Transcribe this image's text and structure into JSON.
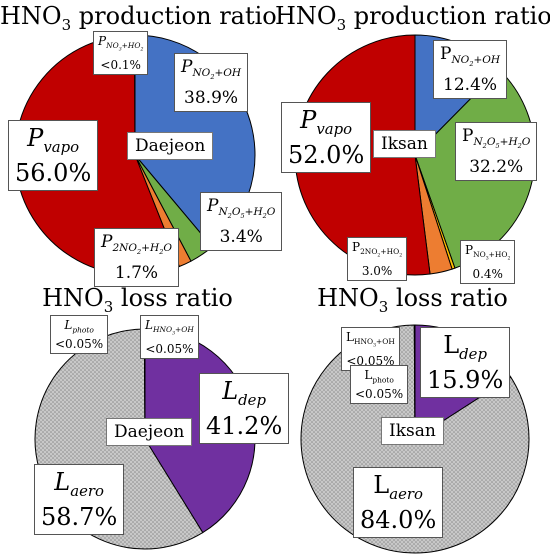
{
  "chart_data": [
    {
      "type": "pie",
      "title": "HNO3 production ratio",
      "site": "Daejeon",
      "slices": [
        {
          "name": "P_{NO2+OH}",
          "value": 38.9,
          "display": "38.9%",
          "color": "#4472C4"
        },
        {
          "name": "P_{N2O5+H2O}",
          "value": 3.4,
          "display": "3.4%",
          "color": "#70AD47"
        },
        {
          "name": "P_{2NO2+H2O}",
          "value": 1.7,
          "display": "1.7%",
          "color": "#ED7D31"
        },
        {
          "name": "P_{vapo}",
          "value": 56.0,
          "display": "56.0%",
          "color": "#C00000"
        },
        {
          "name": "P_{NO3+HO2}",
          "value": 0.05,
          "display": "<0.1%",
          "color": "#FFC000"
        }
      ]
    },
    {
      "type": "pie",
      "title": "HNO3 production ratio",
      "site": "Iksan",
      "slices": [
        {
          "name": "P_{NO2+OH}",
          "value": 12.4,
          "display": "12.4%",
          "color": "#4472C4"
        },
        {
          "name": "P_{N2O5+H2O}",
          "value": 32.2,
          "display": "32.2%",
          "color": "#70AD47"
        },
        {
          "name": "P_{NO3+HO2}",
          "value": 0.4,
          "display": "0.4%",
          "color": "#FFC000"
        },
        {
          "name": "P_{2NO2+HO2}",
          "value": 3.0,
          "display": "3.0%",
          "color": "#ED7D31"
        },
        {
          "name": "P_{vapo}",
          "value": 52.0,
          "display": "52.0%",
          "color": "#C00000"
        }
      ]
    },
    {
      "type": "pie",
      "title": "HNO3 loss ratio",
      "site": "Daejeon",
      "slices": [
        {
          "name": "L_{dep}",
          "value": 41.2,
          "display": "41.2%",
          "color": "#7030A0"
        },
        {
          "name": "L_{aero}",
          "value": 58.7,
          "display": "58.7%",
          "color": "#BFBFBF",
          "pattern": "dots"
        },
        {
          "name": "L_{photo}",
          "value": 0.05,
          "display": "<0.05%",
          "color": "#BFBFBF"
        },
        {
          "name": "L_{HNO3+OH}",
          "value": 0.05,
          "display": "<0.05%",
          "color": "#BFBFBF"
        }
      ]
    },
    {
      "type": "pie",
      "title": "HNO3 loss ratio",
      "site": "Iksan",
      "slices": [
        {
          "name": "L_{dep}",
          "value": 15.9,
          "display": "15.9%",
          "color": "#7030A0"
        },
        {
          "name": "L_{aero}",
          "value": 84.0,
          "display": "84.0%",
          "color": "#BFBFBF",
          "pattern": "dots"
        },
        {
          "name": "L_{photo}",
          "value": 0.05,
          "display": "<0.05%",
          "color": "#BFBFBF"
        },
        {
          "name": "L_{HNO3+OH}",
          "value": 0.05,
          "display": "<0.05%",
          "color": "#BFBFBF"
        }
      ]
    }
  ]
}
